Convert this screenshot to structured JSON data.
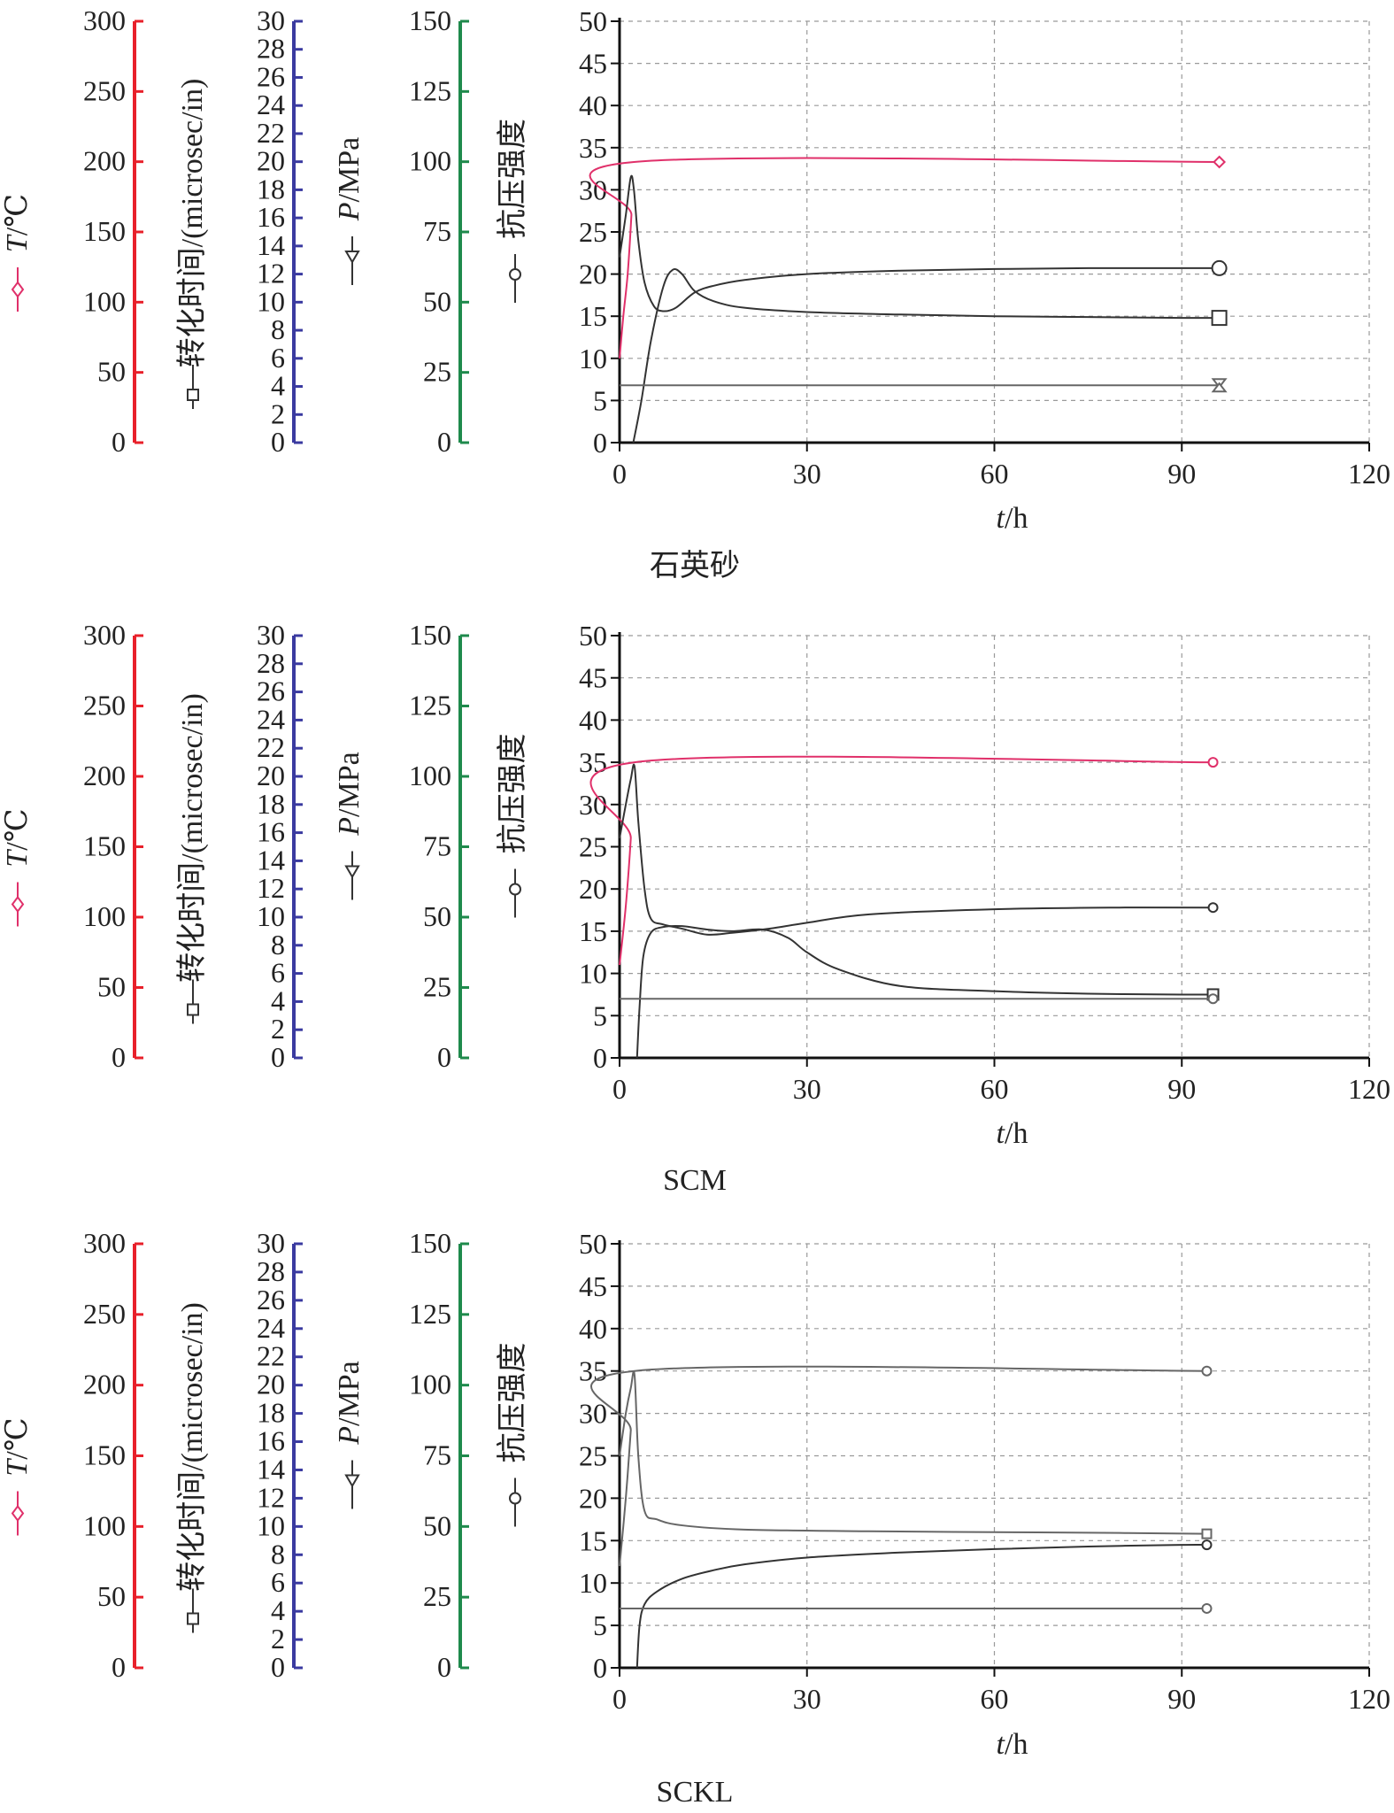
{
  "figure": {
    "left_axes": {
      "temperature": {
        "label_italic": "T",
        "label_rest": "/℃",
        "ticks": [
          "0",
          "50",
          "100",
          "150",
          "200",
          "250",
          "300"
        ],
        "color": "#e8202a"
      },
      "transit": {
        "label": "转化时间/(microsec/in)",
        "ticks": [
          "0",
          "2",
          "4",
          "6",
          "8",
          "10",
          "12",
          "14",
          "16",
          "18",
          "20",
          "22",
          "24",
          "26",
          "28",
          "30"
        ],
        "color": "#3a3aa0"
      },
      "pressure": {
        "label_italic": "P",
        "label_rest": "/MPa",
        "ticks": [
          "0",
          "25",
          "50",
          "75",
          "100",
          "125",
          "150"
        ],
        "color": "#1f8a4c"
      },
      "strength": {
        "label": "抗压强度",
        "color": "#1f8a4c"
      }
    },
    "x_axis_label_italic": "t",
    "x_axis_label_rest": "/h",
    "line_colors": {
      "pink": "#e0306a",
      "dark": "#333333",
      "gray": "#666666"
    }
  },
  "chart_data": [
    {
      "type": "line",
      "caption": "石英砂",
      "xlabel": "t/h",
      "xlim": [
        0,
        120
      ],
      "ylim": [
        0,
        50
      ],
      "x_ticks": [
        "0",
        "30",
        "60",
        "90",
        "120"
      ],
      "y_ticks": [
        "0",
        "5",
        "10",
        "15",
        "20",
        "25",
        "30",
        "35",
        "40",
        "45",
        "50"
      ],
      "series": [
        {
          "key": "temperature",
          "color_key": "pink",
          "marker": "diamond",
          "marker_size": 6,
          "x": [
            0,
            0.6,
            1.3,
            1.9,
            2.3,
            96
          ],
          "y": [
            10,
            15,
            20,
            27,
            33.3,
            33.3
          ]
        },
        {
          "key": "transit",
          "color_key": "dark",
          "marker": "square",
          "marker_size": 8,
          "x": [
            2.2,
            3.5,
            5,
            7,
            8.5,
            10,
            12,
            15,
            20,
            30,
            45,
            60,
            75,
            90,
            96
          ],
          "y": [
            0,
            5,
            12,
            18.5,
            20.5,
            20,
            18,
            16.8,
            16,
            15.5,
            15.2,
            15.0,
            14.9,
            14.8,
            14.8
          ]
        },
        {
          "key": "pressure",
          "color_key": "gray",
          "marker": "triangle",
          "marker_size": 7,
          "x": [
            0,
            96
          ],
          "y": [
            6.8,
            6.8
          ]
        },
        {
          "key": "strength",
          "color_key": "dark",
          "marker": "circle",
          "marker_size": 8,
          "x": [
            0,
            1,
            1.8,
            2.3,
            3,
            4,
            5.5,
            7,
            9,
            12,
            15,
            20,
            30,
            45,
            60,
            75,
            90,
            96
          ],
          "y": [
            22,
            27,
            31.5,
            30,
            24,
            19,
            16.2,
            15.6,
            16,
            17.8,
            18.6,
            19.3,
            20,
            20.4,
            20.6,
            20.7,
            20.7,
            20.7
          ]
        }
      ]
    },
    {
      "type": "line",
      "caption": "SCM",
      "xlabel": "t/h",
      "xlim": [
        0,
        120
      ],
      "ylim": [
        0,
        50
      ],
      "x_ticks": [
        "0",
        "30",
        "60",
        "90",
        "120"
      ],
      "y_ticks": [
        "0",
        "5",
        "10",
        "15",
        "20",
        "25",
        "30",
        "35",
        "40",
        "45",
        "50"
      ],
      "series": [
        {
          "key": "temperature",
          "color_key": "pink",
          "marker": "circle",
          "marker_size": 5,
          "x": [
            0,
            1,
            1.8,
            2.4,
            95
          ],
          "y": [
            11,
            18,
            26,
            35,
            35
          ]
        },
        {
          "key": "transit",
          "color_key": "dark",
          "marker": "square",
          "marker_size": 6,
          "x": [
            2.8,
            3.2,
            3.8,
            5,
            7,
            10,
            14,
            18,
            23,
            27,
            30,
            35,
            45,
            60,
            75,
            90,
            95
          ],
          "y": [
            0,
            6,
            12,
            14.8,
            15.5,
            15.6,
            15.2,
            15.0,
            15.2,
            14.2,
            12.5,
            10.5,
            8.5,
            7.9,
            7.6,
            7.5,
            7.5
          ]
        },
        {
          "key": "pressure",
          "color_key": "gray",
          "marker": "circle",
          "marker_size": 5,
          "x": [
            0,
            95
          ],
          "y": [
            7,
            7
          ]
        },
        {
          "key": "strength",
          "color_key": "dark",
          "marker": "circle",
          "marker_size": 5,
          "x": [
            0,
            1,
            1.8,
            2.4,
            3,
            4,
            5,
            7,
            10,
            14,
            18,
            24,
            30,
            40,
            60,
            80,
            95
          ],
          "y": [
            26,
            30,
            33,
            34.5,
            28,
            20,
            16.5,
            15.8,
            15.3,
            14.6,
            14.8,
            15.3,
            16,
            17,
            17.6,
            17.8,
            17.8
          ]
        }
      ]
    },
    {
      "type": "line",
      "caption": "SCKL",
      "xlabel": "t/h",
      "xlim": [
        0,
        120
      ],
      "ylim": [
        0,
        50
      ],
      "x_ticks": [
        "0",
        "30",
        "60",
        "90",
        "120"
      ],
      "y_ticks": [
        "0",
        "5",
        "10",
        "15",
        "20",
        "25",
        "30",
        "35",
        "40",
        "45",
        "50"
      ],
      "series": [
        {
          "key": "temperature",
          "color_key": "gray",
          "marker": "circle",
          "marker_size": 5,
          "x": [
            0,
            1,
            1.8,
            2.4,
            94
          ],
          "y": [
            12,
            20,
            28,
            35,
            35
          ]
        },
        {
          "key": "transit",
          "color_key": "dark",
          "marker": "circle",
          "marker_size": 5,
          "x": [
            2.8,
            3.2,
            4,
            6,
            10,
            15,
            20,
            30,
            45,
            60,
            75,
            90,
            94
          ],
          "y": [
            0,
            5,
            7.5,
            9,
            10.5,
            11.5,
            12.2,
            13,
            13.6,
            14.0,
            14.3,
            14.5,
            14.5
          ]
        },
        {
          "key": "pressure",
          "color_key": "gray",
          "marker": "circle",
          "marker_size": 5,
          "x": [
            0,
            94
          ],
          "y": [
            7,
            7
          ]
        },
        {
          "key": "strength",
          "color_key": "gray",
          "marker": "square",
          "marker_size": 5,
          "x": [
            0,
            1,
            1.8,
            2.4,
            3,
            4,
            6,
            10,
            20,
            40,
            60,
            80,
            94
          ],
          "y": [
            25,
            30,
            33,
            34.5,
            25,
            18.5,
            17.5,
            16.8,
            16.3,
            16.1,
            16.0,
            15.9,
            15.8
          ]
        }
      ]
    }
  ]
}
